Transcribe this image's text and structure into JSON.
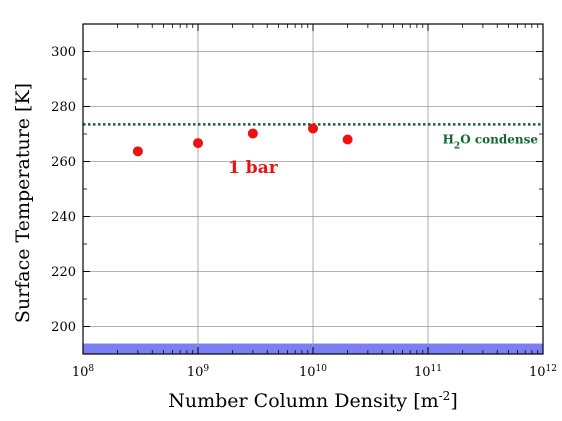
{
  "chart_data": {
    "type": "scatter",
    "title": "",
    "xlabel": {
      "main": "Number Column Density [m",
      "sup": "-2",
      "close": "]"
    },
    "ylabel": "Surface Temperature [K]",
    "x_scale": "log",
    "xlim": [
      100000000.0,
      1000000000000.0
    ],
    "ylim": [
      190,
      310
    ],
    "x_ticks": [
      {
        "base": "10",
        "exp": "8",
        "value": 100000000.0
      },
      {
        "base": "10",
        "exp": "9",
        "value": 1000000000.0
      },
      {
        "base": "10",
        "exp": "10",
        "value": 10000000000.0
      },
      {
        "base": "10",
        "exp": "11",
        "value": 100000000000.0
      },
      {
        "base": "10",
        "exp": "12",
        "value": 1000000000000.0
      }
    ],
    "y_ticks": [
      "200",
      "220",
      "240",
      "260",
      "280",
      "300"
    ],
    "grid": true,
    "series": [
      {
        "color": "#ee1111",
        "points": [
          {
            "x": 300000000.0,
            "y": 263.7
          },
          {
            "x": 1000000000.0,
            "y": 266.7
          },
          {
            "x": 3000000000.0,
            "y": 270.2
          },
          {
            "x": 10000000000.0,
            "y": 272.0
          },
          {
            "x": 20000000000.0,
            "y": 268.0
          }
        ]
      }
    ],
    "reference_lines": [
      {
        "y": 273.5,
        "style": "dotted",
        "color": "#116633",
        "label_main": "H",
        "label_sub": "2",
        "label_rest": "O condense"
      }
    ],
    "bands": [
      {
        "y_from": 190,
        "y_to": 193.8,
        "color": "#7b7ff3"
      }
    ],
    "annotations": [
      {
        "text": "1 bar",
        "x": 3000000000.0,
        "y": 261,
        "color": "#ee1111"
      }
    ]
  }
}
